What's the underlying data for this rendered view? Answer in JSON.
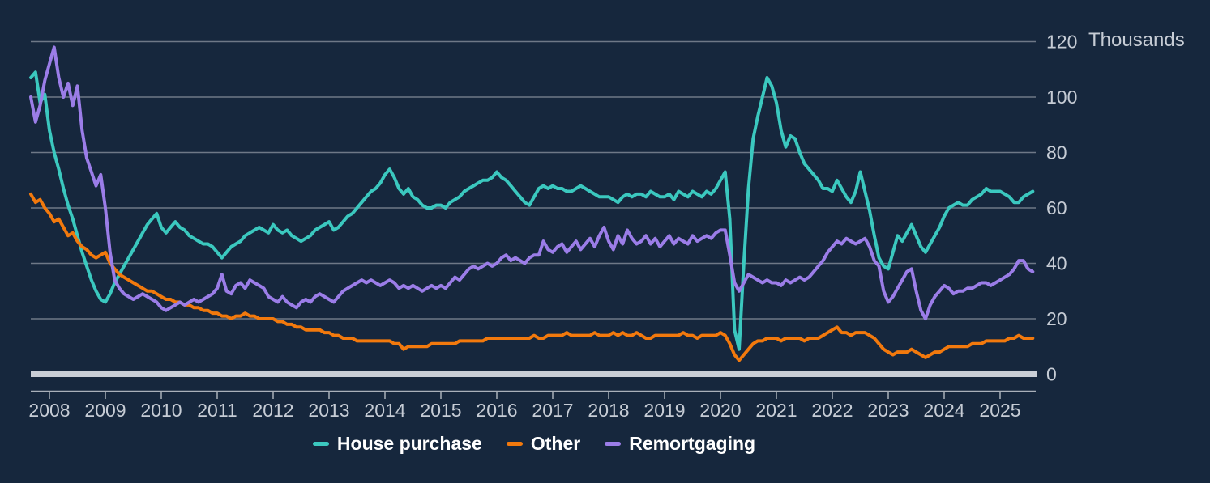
{
  "chart": {
    "background": "#16273D",
    "gridline_color": "#6E7887",
    "zero_line_color": "#C9CED6",
    "axis_line_color": "#A9B0BA",
    "tick_color": "#A9B0BA",
    "label_color": "#C6CCD5",
    "legend_text_color": "#FFFFFF"
  },
  "chart_data": {
    "type": "line",
    "title": "",
    "unit": "Thousands",
    "grid": "horizontal",
    "legend_position": "bottom",
    "x_start": "2007-09",
    "x_end": "2025-08",
    "x_frequency": "monthly",
    "x_tick_labels": [
      "2008",
      "2009",
      "2010",
      "2011",
      "2012",
      "2013",
      "2014",
      "2015",
      "2016",
      "2017",
      "2018",
      "2019",
      "2020",
      "2021",
      "2022",
      "2023",
      "2024",
      "2025"
    ],
    "y_ticks": [
      0,
      20,
      40,
      60,
      80,
      100,
      120
    ],
    "ylim": [
      0,
      120
    ],
    "series": [
      {
        "name": "House purchase",
        "key": "house-purchase",
        "color": "#3BC8BF",
        "values": [
          107,
          109,
          98,
          101,
          88,
          80,
          74,
          67,
          61,
          56,
          50,
          44,
          39,
          34,
          30,
          27,
          26,
          29,
          33,
          36,
          39,
          42,
          45,
          48,
          51,
          54,
          56,
          58,
          53,
          51,
          53,
          55,
          53,
          52,
          50,
          49,
          48,
          47,
          47,
          46,
          44,
          42,
          44,
          46,
          47,
          48,
          50,
          51,
          52,
          53,
          52,
          51,
          54,
          52,
          51,
          52,
          50,
          49,
          48,
          49,
          50,
          52,
          53,
          54,
          55,
          52,
          53,
          55,
          57,
          58,
          60,
          62,
          64,
          66,
          67,
          69,
          72,
          74,
          71,
          67,
          65,
          67,
          64,
          63,
          61,
          60,
          60,
          61,
          61,
          60,
          62,
          63,
          64,
          66,
          67,
          68,
          69,
          70,
          70,
          71,
          73,
          71,
          70,
          68,
          66,
          64,
          62,
          61,
          64,
          67,
          68,
          67,
          68,
          67,
          67,
          66,
          66,
          67,
          68,
          67,
          66,
          65,
          64,
          64,
          64,
          63,
          62,
          64,
          65,
          64,
          65,
          65,
          64,
          66,
          65,
          64,
          64,
          65,
          63,
          66,
          65,
          64,
          66,
          65,
          64,
          66,
          65,
          67,
          70,
          73,
          56,
          16,
          9,
          40,
          67,
          85,
          93,
          100,
          107,
          104,
          98,
          88,
          82,
          86,
          85,
          80,
          76,
          74,
          72,
          70,
          67,
          67,
          66,
          70,
          67,
          64,
          62,
          66,
          73,
          66,
          59,
          50,
          42,
          39,
          38,
          44,
          50,
          48,
          51,
          54,
          50,
          46,
          44,
          47,
          50,
          53,
          57,
          60,
          61,
          62,
          61,
          61,
          63,
          64,
          65,
          67,
          66,
          66,
          66,
          65,
          64,
          62,
          62,
          64,
          65,
          66
        ]
      },
      {
        "name": "Other",
        "key": "other",
        "color": "#F2790D",
        "values": [
          65,
          62,
          63,
          60,
          58,
          55,
          56,
          53,
          50,
          51,
          48,
          46,
          45,
          43,
          42,
          43,
          44,
          40,
          38,
          36,
          35,
          34,
          33,
          32,
          31,
          30,
          30,
          29,
          28,
          27,
          27,
          26,
          26,
          25,
          25,
          24,
          24,
          23,
          23,
          22,
          22,
          21,
          21,
          20,
          21,
          21,
          22,
          21,
          21,
          20,
          20,
          20,
          20,
          19,
          19,
          18,
          18,
          17,
          17,
          16,
          16,
          16,
          16,
          15,
          15,
          14,
          14,
          13,
          13,
          13,
          12,
          12,
          12,
          12,
          12,
          12,
          12,
          12,
          11,
          11,
          9,
          10,
          10,
          10,
          10,
          10,
          11,
          11,
          11,
          11,
          11,
          11,
          12,
          12,
          12,
          12,
          12,
          12,
          13,
          13,
          13,
          13,
          13,
          13,
          13,
          13,
          13,
          13,
          14,
          13,
          13,
          14,
          14,
          14,
          14,
          15,
          14,
          14,
          14,
          14,
          14,
          15,
          14,
          14,
          14,
          15,
          14,
          15,
          14,
          14,
          15,
          14,
          13,
          13,
          14,
          14,
          14,
          14,
          14,
          14,
          15,
          14,
          14,
          13,
          14,
          14,
          14,
          14,
          15,
          14,
          11,
          7,
          5,
          7,
          9,
          11,
          12,
          12,
          13,
          13,
          13,
          12,
          13,
          13,
          13,
          13,
          12,
          13,
          13,
          13,
          14,
          15,
          16,
          17,
          15,
          15,
          14,
          15,
          15,
          15,
          14,
          13,
          11,
          9,
          8,
          7,
          8,
          8,
          8,
          9,
          8,
          7,
          6,
          7,
          8,
          8,
          9,
          10,
          10,
          10,
          10,
          10,
          11,
          11,
          11,
          12,
          12,
          12,
          12,
          12,
          13,
          13,
          14,
          13,
          13,
          13
        ]
      },
      {
        "name": "Remortgaging",
        "key": "remortgaging",
        "color": "#9B7DE8",
        "values": [
          100,
          91,
          97,
          106,
          112,
          118,
          107,
          100,
          105,
          97,
          104,
          88,
          78,
          73,
          68,
          72,
          60,
          44,
          34,
          31,
          29,
          28,
          27,
          28,
          29,
          28,
          27,
          26,
          24,
          23,
          24,
          25,
          26,
          25,
          26,
          27,
          26,
          27,
          28,
          29,
          31,
          36,
          30,
          29,
          32,
          33,
          31,
          34,
          33,
          32,
          31,
          28,
          27,
          26,
          28,
          26,
          25,
          24,
          26,
          27,
          26,
          28,
          29,
          28,
          27,
          26,
          28,
          30,
          31,
          32,
          33,
          34,
          33,
          34,
          33,
          32,
          33,
          34,
          33,
          31,
          32,
          31,
          32,
          31,
          30,
          31,
          32,
          31,
          32,
          31,
          33,
          35,
          34,
          36,
          38,
          39,
          38,
          39,
          40,
          39,
          40,
          42,
          43,
          41,
          42,
          41,
          40,
          42,
          43,
          43,
          48,
          45,
          44,
          46,
          47,
          44,
          46,
          48,
          45,
          47,
          49,
          46,
          50,
          53,
          48,
          45,
          50,
          47,
          52,
          49,
          47,
          48,
          50,
          47,
          49,
          46,
          48,
          50,
          47,
          49,
          48,
          47,
          50,
          48,
          49,
          50,
          49,
          51,
          52,
          52,
          43,
          33,
          30,
          33,
          36,
          35,
          34,
          33,
          34,
          33,
          33,
          32,
          34,
          33,
          34,
          35,
          34,
          35,
          37,
          39,
          41,
          44,
          46,
          48,
          47,
          49,
          48,
          47,
          48,
          49,
          46,
          41,
          39,
          30,
          26,
          28,
          31,
          34,
          37,
          38,
          30,
          23,
          20,
          25,
          28,
          30,
          32,
          31,
          29,
          30,
          30,
          31,
          31,
          32,
          33,
          33,
          32,
          33,
          34,
          35,
          36,
          38,
          41,
          41,
          38,
          37
        ]
      }
    ]
  },
  "legend": {
    "items": [
      {
        "label": "House purchase"
      },
      {
        "label": "Other"
      },
      {
        "label": "Remortgaging"
      }
    ]
  }
}
